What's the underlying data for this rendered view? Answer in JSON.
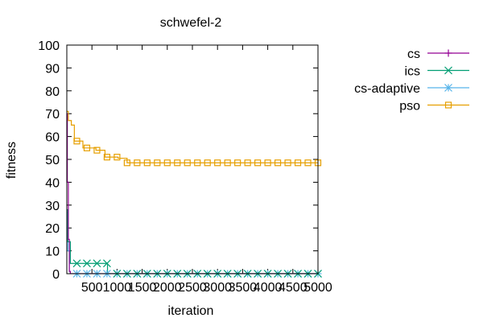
{
  "chart_data": {
    "type": "line",
    "title": "schwefel-2",
    "xlabel": "iteration",
    "ylabel": "fitness",
    "xlim": [
      0,
      5000
    ],
    "ylim": [
      0,
      100
    ],
    "xticks": [
      500,
      1000,
      1500,
      2000,
      2500,
      3000,
      3500,
      4000,
      4500,
      5000
    ],
    "yticks": [
      0,
      10,
      20,
      30,
      40,
      50,
      60,
      70,
      80,
      90,
      100
    ],
    "grid": false,
    "legend_position": "top-right, outside plot",
    "series": [
      {
        "name": "cs",
        "color": "#940094",
        "marker": "plus",
        "points": [
          [
            0,
            70
          ],
          [
            10,
            40
          ],
          [
            30,
            15
          ],
          [
            50,
            1
          ],
          [
            70,
            0
          ],
          [
            5000,
            0
          ]
        ],
        "marker_x": []
      },
      {
        "name": "ics",
        "color": "#009E73",
        "marker": "x",
        "points": [
          [
            0,
            28
          ],
          [
            20,
            14
          ],
          [
            60,
            14
          ],
          [
            70,
            4.5
          ],
          [
            800,
            4.5
          ],
          [
            810,
            0
          ],
          [
            5000,
            0
          ]
        ],
        "marker_x": [
          200,
          400,
          600,
          800,
          1000,
          1200,
          1400,
          1600,
          1800,
          2000,
          2200,
          2400,
          2600,
          2800,
          3000,
          3200,
          3400,
          3600,
          3800,
          4000,
          4200,
          4400,
          4600,
          4800,
          5000
        ]
      },
      {
        "name": "cs-adaptive",
        "color": "#56B4E9",
        "marker": "star",
        "points": [
          [
            0,
            27
          ],
          [
            20,
            10
          ],
          [
            50,
            1
          ],
          [
            70,
            0
          ],
          [
            5000,
            0
          ]
        ],
        "marker_x": [
          200,
          400,
          600,
          800,
          1000,
          1200,
          1400,
          1600,
          1800,
          2000,
          2200,
          2400,
          2600,
          2800,
          3000,
          3200,
          3400,
          3600,
          3800,
          4000,
          4200,
          4400,
          4600,
          4800,
          5000
        ]
      },
      {
        "name": "pso",
        "color": "#E69F00",
        "marker": "square",
        "points": [
          [
            0,
            71
          ],
          [
            30,
            67
          ],
          [
            90,
            65
          ],
          [
            150,
            58
          ],
          [
            290,
            58
          ],
          [
            320,
            55
          ],
          [
            500,
            55
          ],
          [
            580,
            54
          ],
          [
            700,
            54
          ],
          [
            760,
            51
          ],
          [
            900,
            51
          ],
          [
            1020,
            50.5
          ],
          [
            1100,
            50.5
          ],
          [
            1200,
            48.5
          ],
          [
            5000,
            48.5
          ]
        ],
        "marker_x": [
          200,
          400,
          600,
          800,
          1000,
          1200,
          1400,
          1600,
          1800,
          2000,
          2200,
          2400,
          2600,
          2800,
          3000,
          3200,
          3400,
          3600,
          3800,
          4000,
          4200,
          4400,
          4600,
          4800,
          5000
        ]
      }
    ]
  }
}
